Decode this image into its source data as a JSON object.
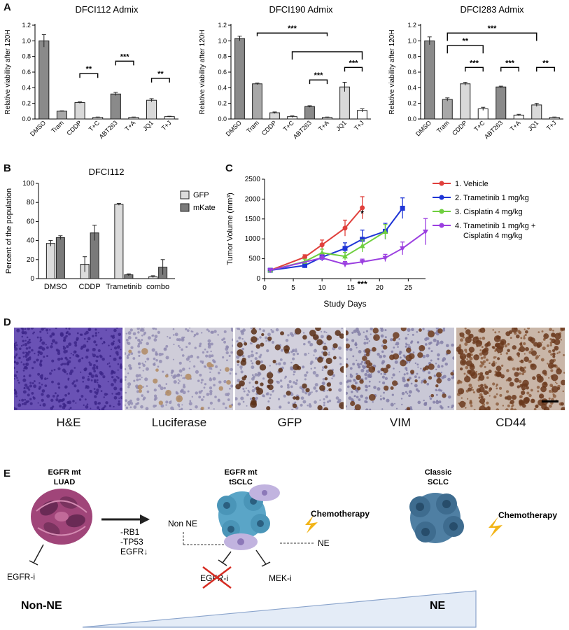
{
  "panel_labels": {
    "a": "A",
    "b": "B",
    "c": "C",
    "d": "D",
    "e": "E"
  },
  "colors": {
    "bar_dark": "#8a8a8a",
    "bar_mid": "#a8a8a8",
    "bar_light": "#d9d9d9",
    "bar_white": "#ffffff",
    "vehicle": "#e0403c",
    "trametinib": "#1f35d6",
    "cisplatin": "#6fcf3f",
    "combo": "#9b3fe0",
    "gfp": "#dcdcdc",
    "mkate": "#7a7a7a",
    "he_bg": "#6a52b5",
    "ihc_bg": "#c9c8d6",
    "brown": "#6b3a1d",
    "luad": "#a04579",
    "sclc": "#4f7fa3",
    "tsclc": "#5aa5c7",
    "ne_cell": "#c1b3df",
    "bolt": "#f2b417"
  },
  "chart_data": [
    {
      "type": "bar",
      "title": "DFCI112 Admix",
      "ylabel": "Relative viability after 120H",
      "categories": [
        "DMSO",
        "Tram",
        "CDDP",
        "T+C",
        "ABT263",
        "T+A",
        "JQ1",
        "T+J"
      ],
      "values": [
        1.0,
        0.1,
        0.21,
        0.02,
        0.32,
        0.02,
        0.24,
        0.03
      ],
      "errors": [
        0.08,
        0.005,
        0.01,
        0.005,
        0.02,
        0.005,
        0.02,
        0.005
      ],
      "ylim": [
        0,
        1.2
      ],
      "yticks": [
        "0.0",
        "0.2",
        "0.4",
        "0.6",
        "0.8",
        "1.0",
        "1.2"
      ],
      "significance": [
        {
          "label": "**",
          "from": 2,
          "to": 3,
          "y": 0.58
        },
        {
          "label": "***",
          "from": 4,
          "to": 5,
          "y": 0.74
        },
        {
          "label": "**",
          "from": 6,
          "to": 7,
          "y": 0.52
        }
      ]
    },
    {
      "type": "bar",
      "title": "DFCI190 Admix",
      "ylabel": "Relative viability after 120H",
      "categories": [
        "DMSO",
        "Tram",
        "CDDP",
        "T+C",
        "ABT263",
        "T+A",
        "JQ1",
        "T+J"
      ],
      "values": [
        1.03,
        0.45,
        0.08,
        0.03,
        0.16,
        0.02,
        0.41,
        0.11
      ],
      "errors": [
        0.03,
        0.01,
        0.01,
        0.01,
        0.01,
        0.005,
        0.06,
        0.02
      ],
      "ylim": [
        0,
        1.2
      ],
      "yticks": [
        "0.0",
        "0.2",
        "0.4",
        "0.6",
        "0.8",
        "1.0",
        "1.2"
      ],
      "significance": [
        {
          "label": "***",
          "from": 4,
          "to": 5,
          "y": 0.5
        },
        {
          "label": "***",
          "from": 6,
          "to": 7,
          "y": 0.66
        }
      ],
      "group_brackets": [
        {
          "label": "***",
          "left": [
            1,
            1
          ],
          "right": [
            5,
            5
          ],
          "y": 1.1,
          "drop": 0.04
        },
        {
          "label": "",
          "left": [
            3,
            3
          ],
          "right": [
            7,
            7
          ],
          "y": 0.86,
          "drop": 0.1
        }
      ]
    },
    {
      "type": "bar",
      "title": "DFCI283 Admix",
      "ylabel": "Relative viability after 120H",
      "categories": [
        "DMSO",
        "Tram",
        "CDDP",
        "T+C",
        "ABT263",
        "T+A",
        "JQ1",
        "T+J"
      ],
      "values": [
        1.0,
        0.25,
        0.45,
        0.13,
        0.41,
        0.05,
        0.18,
        0.02
      ],
      "errors": [
        0.05,
        0.02,
        0.02,
        0.02,
        0.01,
        0.01,
        0.02,
        0.005
      ],
      "ylim": [
        0,
        1.2
      ],
      "yticks": [
        "0.0",
        "0.2",
        "0.4",
        "0.6",
        "0.8",
        "1.0",
        "1.2"
      ],
      "significance": [
        {
          "label": "***",
          "from": 2,
          "to": 3,
          "y": 0.66
        },
        {
          "label": "***",
          "from": 4,
          "to": 5,
          "y": 0.66
        },
        {
          "label": "**",
          "from": 6,
          "to": 7,
          "y": 0.66
        }
      ],
      "group_brackets": [
        {
          "label": "**",
          "left": [
            1,
            1
          ],
          "right": [
            3,
            3
          ],
          "y": 0.94,
          "drop": 0.1
        },
        {
          "label": "***",
          "left": [
            1,
            1
          ],
          "right": [
            6,
            6
          ],
          "y": 1.1,
          "drop": 0.1
        }
      ]
    },
    {
      "type": "bar",
      "title": "DFCI112",
      "ylabel": "Percent of the population",
      "categories": [
        "DMSO",
        "CDDP",
        "Trametinib",
        "combo"
      ],
      "series": [
        {
          "name": "GFP",
          "values": [
            37,
            15,
            78,
            2
          ],
          "errors": [
            3,
            8,
            1,
            1
          ]
        },
        {
          "name": "mKate",
          "values": [
            43,
            48,
            4,
            12
          ],
          "errors": [
            2,
            8,
            1,
            8
          ]
        }
      ],
      "ylim": [
        0,
        100
      ],
      "yticks": [
        "0",
        "20",
        "40",
        "60",
        "80",
        "100"
      ]
    },
    {
      "type": "line",
      "xlabel": "Study Days",
      "ylabel": "Tumor Volume (mm³)",
      "xlim": [
        0,
        28
      ],
      "ylim": [
        0,
        2500
      ],
      "xticks": [
        "0",
        "5",
        "10",
        "15",
        "20",
        "25"
      ],
      "yticks": [
        "0",
        "500",
        "1000",
        "1500",
        "2000",
        "2500"
      ],
      "series": [
        {
          "name": "1. Vehicle",
          "x": [
            1,
            7,
            10,
            14,
            17
          ],
          "y": [
            210,
            540,
            850,
            1270,
            1780
          ],
          "err": [
            20,
            60,
            120,
            200,
            280
          ]
        },
        {
          "name": "2. Trametinib 1 mg/kg",
          "x": [
            1,
            7,
            10,
            14,
            17,
            21,
            24
          ],
          "y": [
            210,
            330,
            540,
            760,
            990,
            1190,
            1770
          ],
          "err": [
            20,
            60,
            100,
            140,
            230,
            200,
            260
          ]
        },
        {
          "name": "3. Cisplatin 4 mg/kg",
          "x": [
            1,
            7,
            10,
            14,
            17,
            21
          ],
          "y": [
            210,
            430,
            650,
            560,
            820,
            1180
          ],
          "err": [
            20,
            60,
            90,
            100,
            150,
            180
          ]
        },
        {
          "name": "4. Trametinib 1 mg/kg + Cisplatin 4 mg/kg",
          "x": [
            1,
            10,
            14,
            17,
            21,
            24,
            28
          ],
          "y": [
            210,
            520,
            360,
            420,
            520,
            760,
            1180
          ],
          "err": [
            20,
            80,
            70,
            70,
            90,
            160,
            330
          ]
        }
      ],
      "annotations": [
        {
          "text": "*",
          "x": 17,
          "y": 1320
        },
        {
          "text": "***",
          "x": 17,
          "y": 140
        }
      ]
    }
  ],
  "panel_d": {
    "captions": [
      "H&E",
      "Luciferase",
      "GFP",
      "VIM",
      "CD44"
    ]
  },
  "panel_e": {
    "luad_title": "EGFR mt\nLUAD",
    "tsclc_title": "EGFR mt\ntSCLC",
    "sclc_title": "Classic\nSCLC",
    "chemo": "Chemotherapy",
    "non_ne": "Non NE",
    "ne_label": "NE",
    "mutations": "-RB1\n-TP53\nEGFR↓",
    "egfri_left": "EGFR-i",
    "egfri_mid": "EGFR-i",
    "meki": "MEK-i",
    "gradient_left": "Non-NE",
    "gradient_right": "NE"
  }
}
